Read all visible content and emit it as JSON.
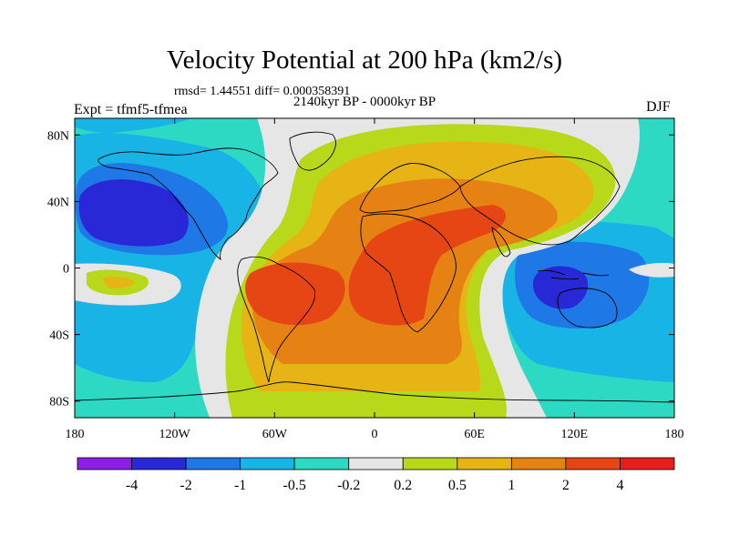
{
  "chart_data": {
    "type": "heatmap",
    "title": "Velocity Potential at 200 hPa (km2/s)",
    "stats_line": "rmsd= 1.44551 diff= 0.000358391",
    "left_label": "Expt = tfmf5-tfmea",
    "center_label": "2140kyr BP - 0000kyr BP",
    "right_label": "DJF",
    "x_ticks": [
      "180",
      "120W",
      "60W",
      "0",
      "60E",
      "120E",
      "180"
    ],
    "y_ticks": [
      "80N",
      "40N",
      "0",
      "40S",
      "80S"
    ],
    "x_range": [
      -180,
      180
    ],
    "y_range": [
      -90,
      90
    ],
    "colorbar": {
      "levels": [
        "-4",
        "-2",
        "-1",
        "-0.5",
        "-0.2",
        "0.2",
        "0.5",
        "1",
        "2",
        "4"
      ],
      "colors": [
        "#8d1ee6",
        "#2828d7",
        "#1e78e6",
        "#19b4e6",
        "#2ed9c4",
        "#e6e6e6",
        "#b8d81a",
        "#e6b414",
        "#e68214",
        "#e64614",
        "#e61e1e"
      ]
    },
    "features": [
      {
        "name": "negative-center-north-pacific",
        "lon": -140,
        "lat": 35,
        "value": -3
      },
      {
        "name": "positive-center-eastern-pacific",
        "lon": -162,
        "lat": -10,
        "value": 0.6
      },
      {
        "name": "positive-center-south-america",
        "lon": -40,
        "lat": -15,
        "value": 2.5
      },
      {
        "name": "positive-center-africa-arabia",
        "lon": 50,
        "lat": 25,
        "value": 2.5
      },
      {
        "name": "negative-center-maritime-continent",
        "lon": 120,
        "lat": -15,
        "value": -3
      }
    ]
  }
}
